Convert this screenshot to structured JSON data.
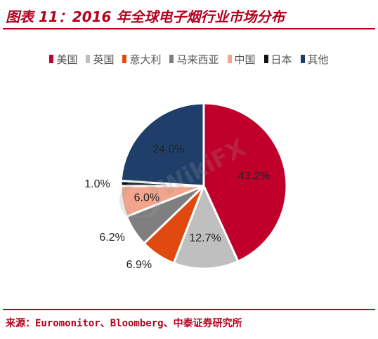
{
  "title": "图表 11：2016 年全球电子烟行业市场分布",
  "source": "来源：Euromonitor、Bloomberg、中泰证券研究所",
  "watermark_text": "WikiFX",
  "chart_data": {
    "type": "pie",
    "legend_position": "top",
    "categories": [
      "美国",
      "英国",
      "意大利",
      "马来西亚",
      "中国",
      "日本",
      "其他"
    ],
    "values": [
      43.2,
      12.7,
      6.9,
      6.2,
      6.0,
      1.0,
      24.0
    ],
    "labels": [
      "43.2%",
      "12.7%",
      "6.9%",
      "6.2%",
      "6.0%",
      "1.0%",
      "24.0%"
    ],
    "colors": [
      "#c0002b",
      "#bfbfbf",
      "#e04a10",
      "#7f7f7f",
      "#f2a58c",
      "#111111",
      "#1f3f6a"
    ]
  }
}
